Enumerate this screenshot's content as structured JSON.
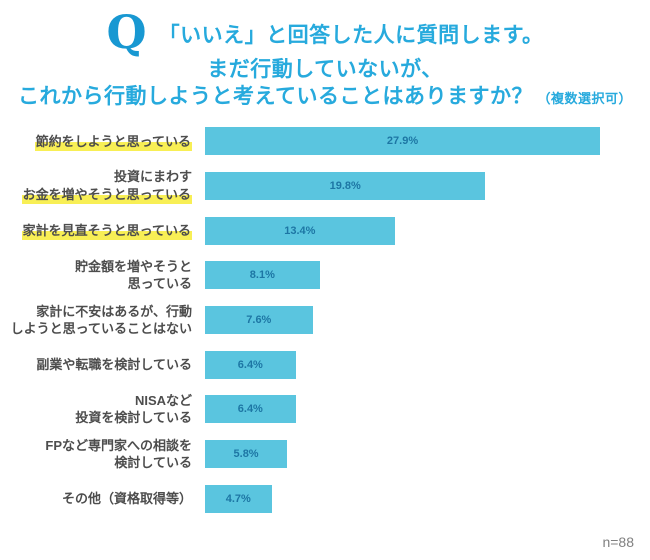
{
  "title": {
    "q_mark": "Q",
    "line1": "「いいえ」と回答した人に質問します。",
    "line2": "まだ行動していないが、",
    "line3": "これから行動しようと考えていることはありますか？",
    "line3_note": "（複数選択可）"
  },
  "footer": {
    "sample_size": "n=88"
  },
  "colors": {
    "q_mark": "#1898d2",
    "title": "#27aadd",
    "bar": "#5ac5df",
    "bar_value_text": "#1d76a4",
    "label_text": "#4d4d4d",
    "highlight": "#f8ef55",
    "footer_text": "#808080"
  },
  "chart_data": {
    "type": "bar",
    "orientation": "horizontal",
    "title": "「いいえ」と回答した人に質問します。まだ行動していないが、これから行動しようと考えていることはありますか？（複数選択可）",
    "unit": "%",
    "xlim": [
      0,
      28.5
    ],
    "grid": false,
    "legend": "none",
    "sample_size": "n=88",
    "categories": [
      {
        "lines": [
          {
            "text": "節約をしようと思っている",
            "highlight": true
          }
        ]
      },
      {
        "lines": [
          {
            "text": "投資にまわす",
            "highlight": false
          },
          {
            "text": "お金を増やそうと思っている",
            "highlight": true
          }
        ]
      },
      {
        "lines": [
          {
            "text": "家計を見直そうと思っている",
            "highlight": true
          }
        ]
      },
      {
        "lines": [
          {
            "text": "貯金額を増やそうと",
            "highlight": false
          },
          {
            "text": "思っている",
            "highlight": false
          }
        ]
      },
      {
        "lines": [
          {
            "text": "家計に不安はあるが、行動",
            "highlight": false
          },
          {
            "text": "しようと思っていることはない",
            "highlight": false
          }
        ]
      },
      {
        "lines": [
          {
            "text": "副業や転職を検討している",
            "highlight": false
          }
        ]
      },
      {
        "lines": [
          {
            "text": "NISAなど",
            "highlight": false
          },
          {
            "text": "投資を検討している",
            "highlight": false
          }
        ]
      },
      {
        "lines": [
          {
            "text": "FPなど専門家への相談を",
            "highlight": false
          },
          {
            "text": "検討している",
            "highlight": false
          }
        ]
      },
      {
        "lines": [
          {
            "text": "その他（資格取得等）",
            "highlight": false
          }
        ]
      }
    ],
    "values": [
      27.9,
      19.8,
      13.4,
      8.1,
      7.6,
      6.4,
      6.4,
      5.8,
      4.7
    ],
    "value_labels": [
      "27.9%",
      "19.8%",
      "13.4%",
      "8.1%",
      "7.6%",
      "6.4%",
      "6.4%",
      "5.8%",
      "4.7%"
    ]
  }
}
